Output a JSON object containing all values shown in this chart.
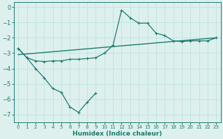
{
  "xlabel": "Humidex (Indice chaleur)",
  "xlim": [
    -0.5,
    23.5
  ],
  "ylim": [
    -7.5,
    0.3
  ],
  "yticks": [
    0,
    -1,
    -2,
    -3,
    -4,
    -5,
    -6,
    -7
  ],
  "xticks": [
    0,
    1,
    2,
    3,
    4,
    5,
    6,
    7,
    8,
    9,
    10,
    11,
    12,
    13,
    14,
    15,
    16,
    17,
    18,
    19,
    20,
    21,
    22,
    23
  ],
  "bg_color": "#ddf0ee",
  "grid_color": "#c2e4e0",
  "line_color": "#1d7a70",
  "line1_x": [
    0,
    1,
    2,
    3,
    4,
    5,
    6,
    7,
    8,
    9,
    10,
    11,
    12,
    13,
    14,
    15,
    16,
    17,
    18,
    19,
    20,
    21,
    22,
    23
  ],
  "line1_y": [
    -2.7,
    -3.3,
    -3.5,
    -3.55,
    -3.5,
    -3.5,
    -3.4,
    -3.4,
    -3.35,
    -3.3,
    -3.0,
    -2.5,
    -0.2,
    -0.7,
    -1.05,
    -1.05,
    -1.7,
    -1.85,
    -2.2,
    -2.25,
    -2.2,
    -2.2,
    -2.2,
    -2.0
  ],
  "line2_x": [
    0,
    1,
    2,
    3,
    4,
    5,
    6,
    7,
    8,
    9
  ],
  "line2_y": [
    -2.7,
    -3.3,
    -4.0,
    -4.6,
    -5.3,
    -5.55,
    -6.5,
    -6.85,
    -6.2,
    -5.6
  ],
  "line3_x": [
    0,
    23
  ],
  "line3_y": [
    -3.1,
    -2.0
  ]
}
